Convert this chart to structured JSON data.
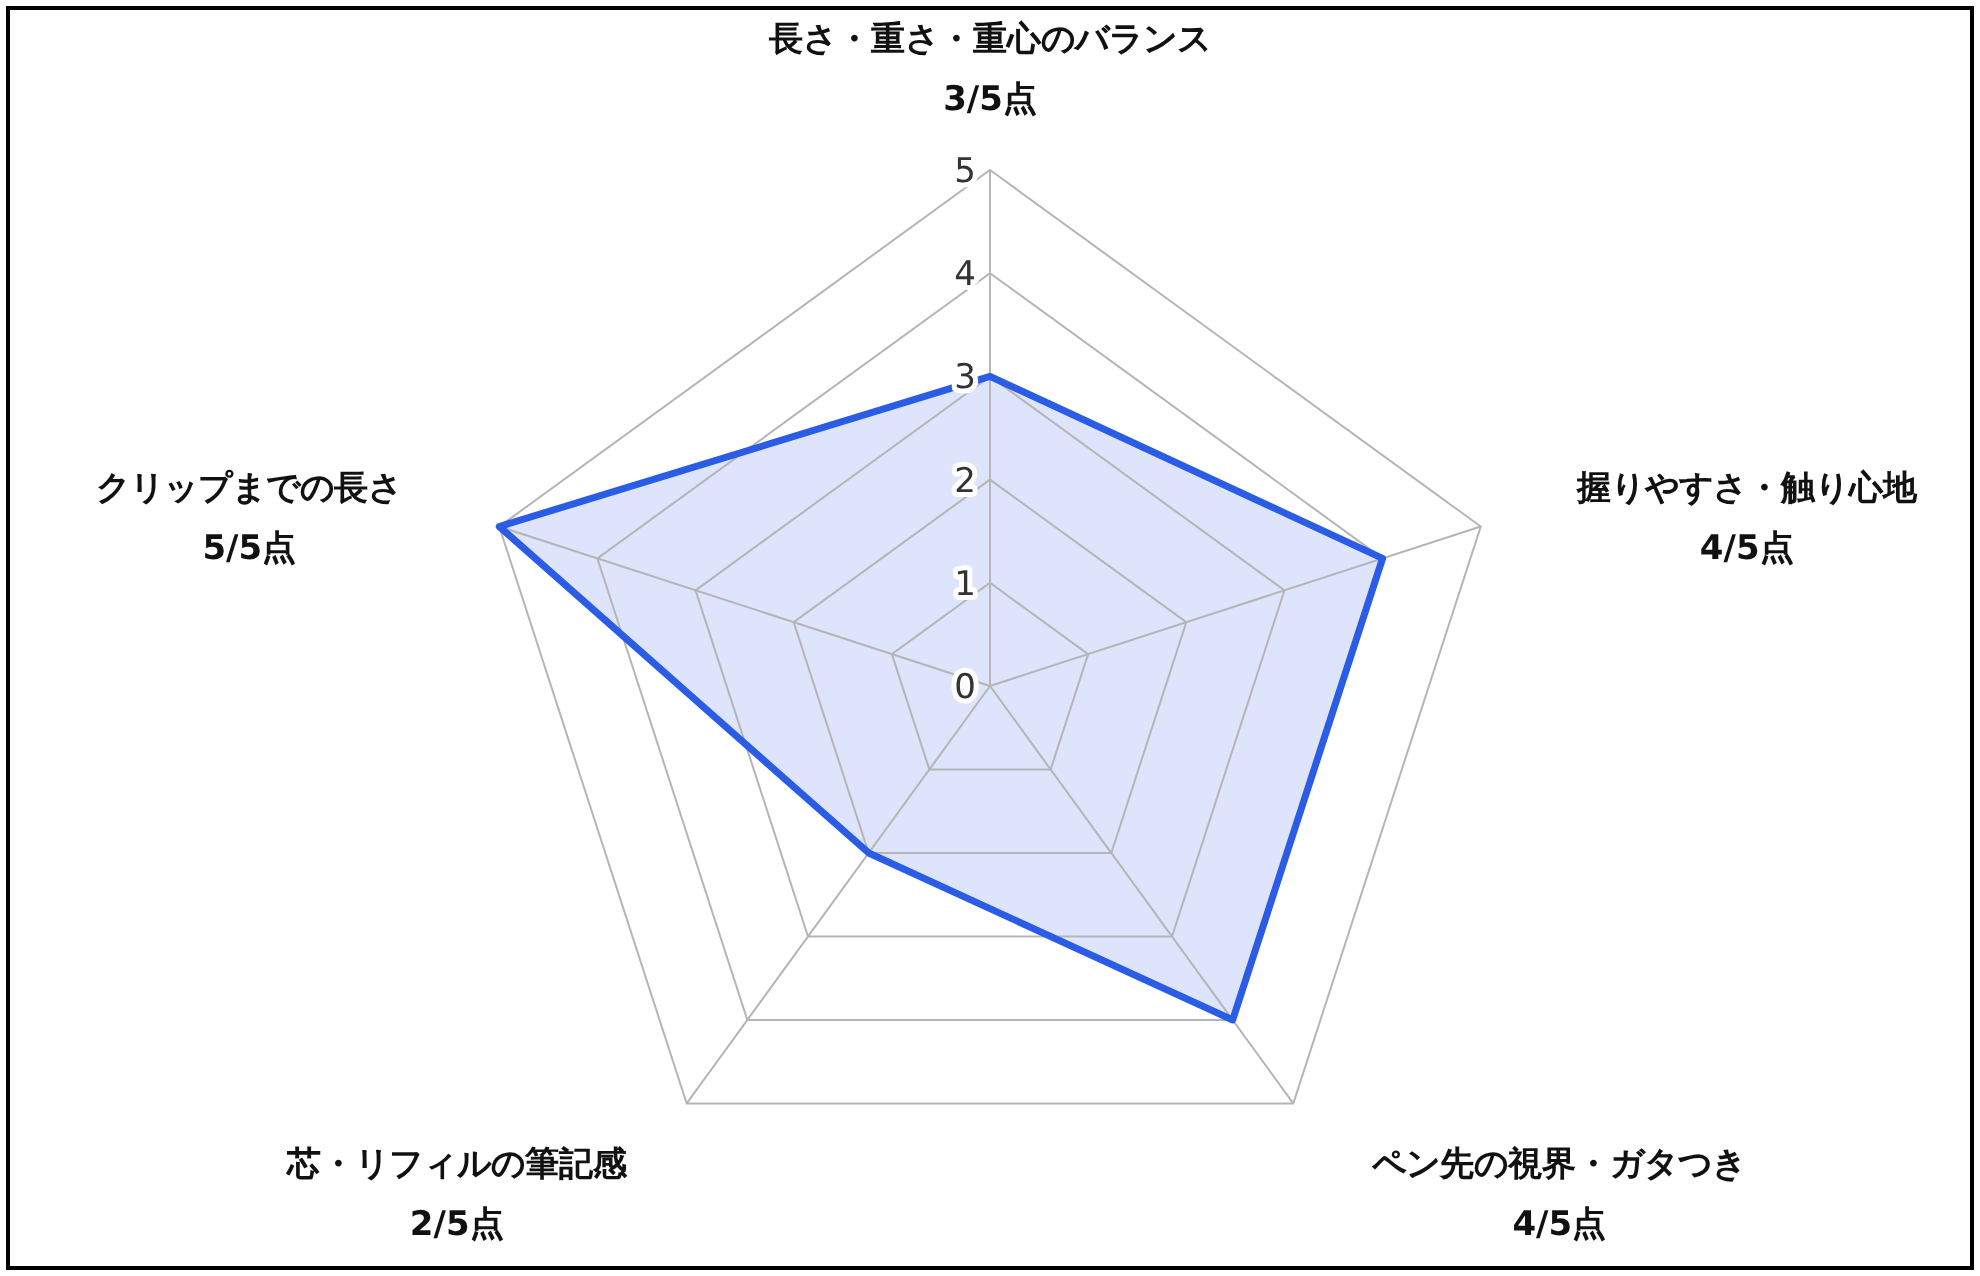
{
  "chart_data": {
    "type": "radar",
    "categories": [
      "長さ・重さ・重心のバランス\n3/5点",
      "握りやすさ・触り心地\n4/5点",
      "ペン先の視界・ガタつき\n4/5点",
      "芯・リフィルの筆記感\n2/5点",
      "クリップまでの長さ\n5/5点"
    ],
    "series": [
      {
        "color": "#2b5ce6",
        "values": [
          3,
          4,
          4,
          2,
          5
        ]
      }
    ],
    "ylim": [
      0,
      5
    ],
    "yticks": [
      0,
      1,
      2,
      3,
      4,
      5
    ],
    "grid": true,
    "marker": "none"
  }
}
